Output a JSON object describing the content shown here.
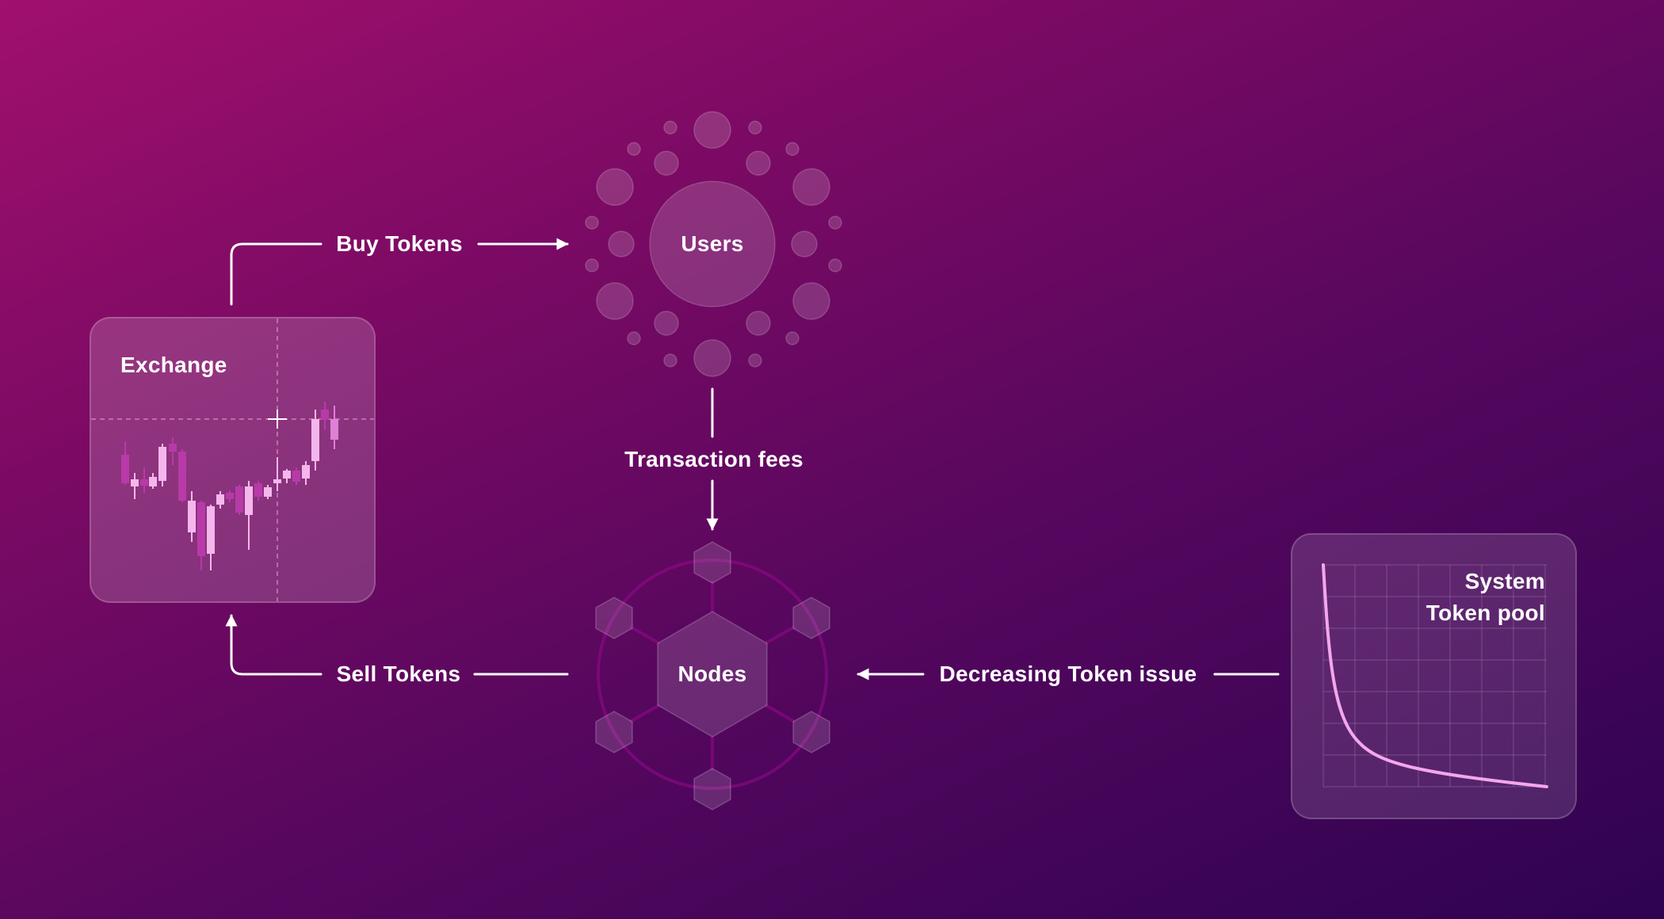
{
  "diagram": {
    "labels": {
      "buy": "Buy Tokens",
      "sell": "Sell Tokens",
      "users": "Users",
      "nodes": "Nodes",
      "fees": "Transaction fees",
      "issue": "Decreasing Token issue",
      "exchange": "Exchange",
      "pool_line1": "System",
      "pool_line2": "Token pool"
    },
    "colors": {
      "line": "#ffffff",
      "candle_light": "#f5b6ec",
      "candle_mid": "#e07fd6",
      "candle_dark": "#b83aa8",
      "curve": "#f4a6ec"
    },
    "icons": {
      "crosshair": "crosshair-icon"
    }
  }
}
